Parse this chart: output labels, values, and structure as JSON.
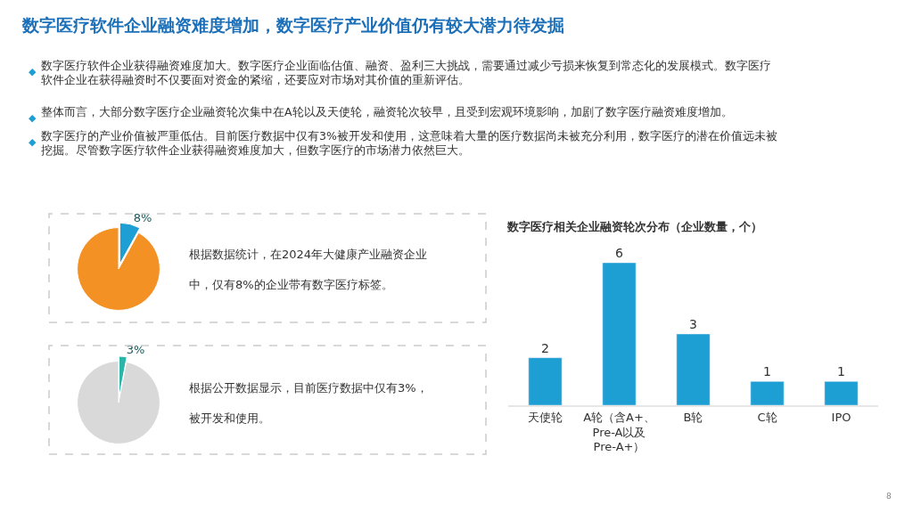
{
  "chart_data": [
    {
      "type": "other",
      "title": "数字医疗软件企业融资难度增加，数字医疗产业价值仍有较大潜力待发掘",
      "annotations": [
        "◆数字医疗软件企业获得融资难度加大。数字医疗企业面临估值、融资、盈利三大挑战，需要通过减少亏损来恢复到常态化的发展模式。数字医疗软件企业在获得融资时不仅要面对资金的紧缩，还要应对市场对其价值的重新评估。",
        "◆整体而言，大部分数字医疗企业融资轮次集中在A轮以及天使轮，融资轮次较早，且受到宏观环境影响，加剧了数字医疗融资难度增加。",
        "◆数字医疗的产业价值被严重低估。目前医疗数据中仅有3%被开发和使用，这意味着大量的医疗数据尚未被充分利用，数字医疗的潜在价值远未被挖掘。尽管数字医疗软件企业获得融资难度加大，但数字医疗的市场潜力依然巨大。",
        "8"
      ]
    },
    {
      "type": "pie",
      "categories": [
        null,
        null
      ],
      "values": [
        8,
        92
      ],
      "colors": [
        "#1e9fd3",
        "#f39125"
      ],
      "value_labels": [
        "8%",
        null
      ],
      "annotations": [
        "根据数据统计，在2024年大健康产业融资企业中，仅有8%的企业带有数字医疗标签。"
      ]
    },
    {
      "type": "pie",
      "categories": [
        null,
        null
      ],
      "values": [
        3,
        97
      ],
      "colors": [
        "#2bb5a8",
        "#d9d9d9"
      ],
      "value_labels": [
        "3%",
        null
      ],
      "annotations": [
        "根据公开数据显示，目前医疗数据中仅有3%，被开发和使用。"
      ]
    },
    {
      "type": "bar",
      "title": "数字医疗相关企业融资轮次分布（企业数量，个）",
      "categories": [
        "天使轮",
        "A轮（含A+、Pre-A以及Pre-A+）",
        "B轮",
        "C轮",
        "IPO"
      ],
      "values": [
        2,
        6,
        3,
        1,
        1
      ],
      "color": "#1e9fd3",
      "data_labels": true
    }
  ]
}
